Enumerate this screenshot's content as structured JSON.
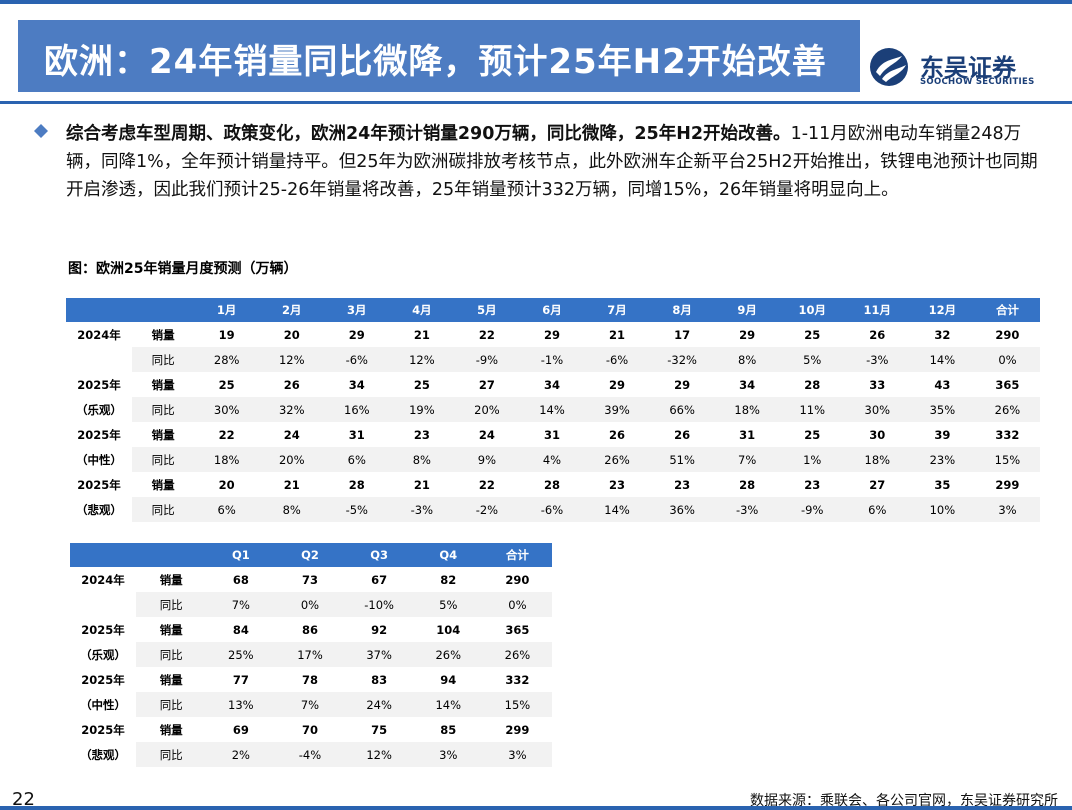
{
  "header": {
    "title": "欧洲：24年销量同比微降，预计25年H2开始改善",
    "logo_cn": "东吴证券",
    "logo_en": "SOOCHOW SECURITIES",
    "accent": "#2a63b0",
    "bar_color": "#4d7cc2"
  },
  "summary": {
    "bold": "综合考虑车型周期、政策变化，欧洲24年预计销量290万辆，同比微降，25年H2开始改善。",
    "rest": "1-11月欧洲电动车销量248万辆，同降1%，全年预计销量持平。但25年为欧洲碳排放考核节点，此外欧洲车企新平台25H2开始推出，铁锂电池预计也同期开启渗透，因此我们预计25-26年销量将改善，25年销量预计332万辆，同增15%，26年销量将明显向上。"
  },
  "figure_caption": "图：欧洲25年销量月度预测（万辆）",
  "monthly_table": {
    "headers": [
      "",
      "",
      "1月",
      "2月",
      "3月",
      "4月",
      "5月",
      "6月",
      "7月",
      "8月",
      "9月",
      "10月",
      "11月",
      "12月",
      "合计"
    ],
    "groups": [
      {
        "label1": "2024年",
        "label2": "",
        "sales": [
          "销量",
          "19",
          "20",
          "29",
          "21",
          "22",
          "29",
          "21",
          "17",
          "29",
          "25",
          "26",
          "32",
          "290"
        ],
        "yoy": [
          "同比",
          "28%",
          "12%",
          "-6%",
          "12%",
          "-9%",
          "-1%",
          "-6%",
          "-32%",
          "8%",
          "5%",
          "-3%",
          "14%",
          "0%"
        ]
      },
      {
        "label1": "2025年",
        "label2": "（乐观）",
        "sales": [
          "销量",
          "25",
          "26",
          "34",
          "25",
          "27",
          "34",
          "29",
          "29",
          "34",
          "28",
          "33",
          "43",
          "365"
        ],
        "yoy": [
          "同比",
          "30%",
          "32%",
          "16%",
          "19%",
          "20%",
          "14%",
          "39%",
          "66%",
          "18%",
          "11%",
          "30%",
          "35%",
          "26%"
        ]
      },
      {
        "label1": "2025年",
        "label2": "（中性）",
        "sales": [
          "销量",
          "22",
          "24",
          "31",
          "23",
          "24",
          "31",
          "26",
          "26",
          "31",
          "25",
          "30",
          "39",
          "332"
        ],
        "yoy": [
          "同比",
          "18%",
          "20%",
          "6%",
          "8%",
          "9%",
          "4%",
          "26%",
          "51%",
          "7%",
          "1%",
          "18%",
          "23%",
          "15%"
        ]
      },
      {
        "label1": "2025年",
        "label2": "（悲观）",
        "sales": [
          "销量",
          "20",
          "21",
          "28",
          "21",
          "22",
          "28",
          "23",
          "23",
          "28",
          "23",
          "27",
          "35",
          "299"
        ],
        "yoy": [
          "同比",
          "6%",
          "8%",
          "-5%",
          "-3%",
          "-2%",
          "-6%",
          "14%",
          "36%",
          "-3%",
          "-9%",
          "6%",
          "10%",
          "3%"
        ]
      }
    ]
  },
  "quarterly_table": {
    "headers": [
      "",
      "",
      "Q1",
      "Q2",
      "Q3",
      "Q4",
      "合计"
    ],
    "groups": [
      {
        "label1": "2024年",
        "label2": "",
        "sales": [
          "销量",
          "68",
          "73",
          "67",
          "82",
          "290"
        ],
        "yoy": [
          "同比",
          "7%",
          "0%",
          "-10%",
          "5%",
          "0%"
        ]
      },
      {
        "label1": "2025年",
        "label2": "（乐观）",
        "sales": [
          "销量",
          "84",
          "86",
          "92",
          "104",
          "365"
        ],
        "yoy": [
          "同比",
          "25%",
          "17%",
          "37%",
          "26%",
          "26%"
        ]
      },
      {
        "label1": "2025年",
        "label2": "（中性）",
        "sales": [
          "销量",
          "77",
          "78",
          "83",
          "94",
          "332"
        ],
        "yoy": [
          "同比",
          "13%",
          "7%",
          "24%",
          "14%",
          "15%"
        ]
      },
      {
        "label1": "2025年",
        "label2": "（悲观）",
        "sales": [
          "销量",
          "69",
          "70",
          "75",
          "85",
          "299"
        ],
        "yoy": [
          "同比",
          "2%",
          "-4%",
          "12%",
          "3%",
          "3%"
        ]
      }
    ]
  },
  "footer": {
    "page_number": "22",
    "source": "数据来源：乘联会、各公司官网，东吴证券研究所"
  }
}
